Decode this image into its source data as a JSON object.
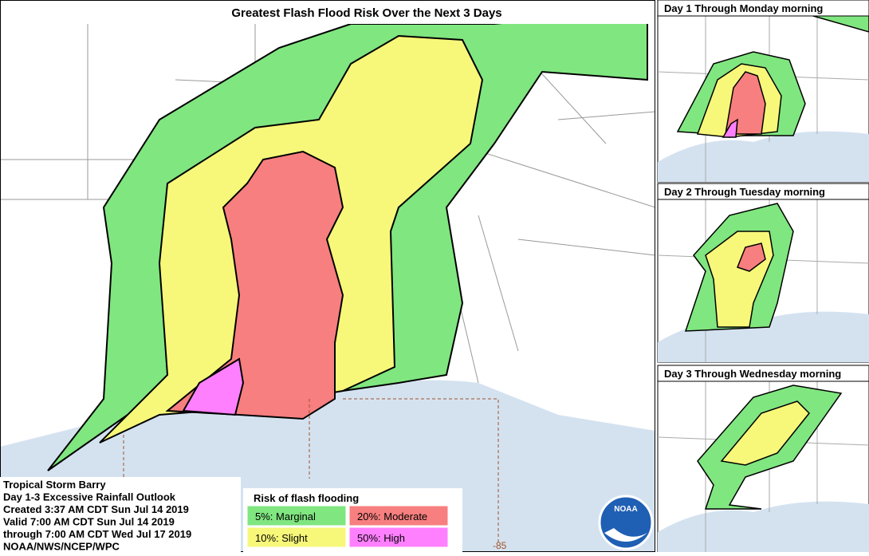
{
  "title": "Greatest Flash Flood Risk Over the Next 3 Days",
  "panels": [
    {
      "title": "Day 1 Through Monday morning"
    },
    {
      "title": "Day 2 Through Tuesday morning"
    },
    {
      "title": "Day 3 Through Wednesday morning"
    }
  ],
  "info": {
    "lines": [
      "Tropical Storm Barry",
      "Day 1-3 Excessive Rainfall Outlook",
      "Created 3:37 AM CDT Sun Jul 14 2019",
      "Valid 7:00 AM CDT Sun Jul 14 2019",
      "through 7:00 AM CDT Wed Jul 17 2019",
      "NOAA/NWS/NCEP/WPC"
    ]
  },
  "legend": {
    "title": "Risk of flash flooding",
    "items": [
      {
        "label": "5%: Marginal",
        "color": "#80e680"
      },
      {
        "label": "20%: Moderate",
        "color": "#f77f7f"
      },
      {
        "label": "10%: Slight",
        "color": "#f7f77a"
      },
      {
        "label": "50%: High",
        "color": "#ff80ff"
      }
    ]
  },
  "map_label": "-85",
  "logo": "NOAA"
}
